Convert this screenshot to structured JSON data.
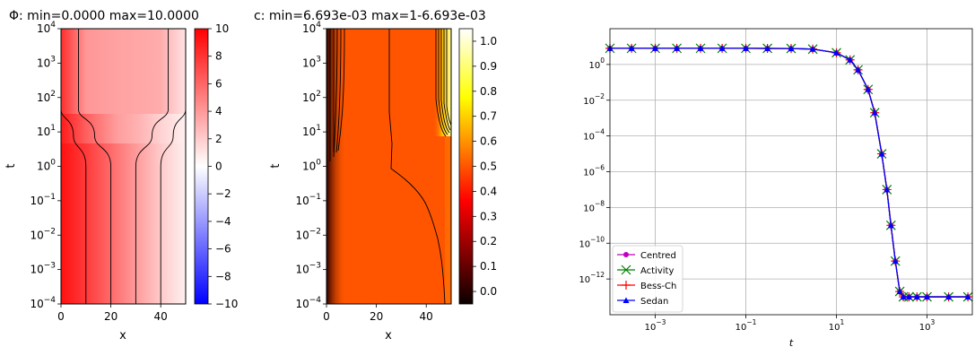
{
  "chart_data": [
    {
      "type": "heatmap",
      "title": "Φ: min=0.0000 max=10.0000",
      "xlabel": "x",
      "ylabel": "t",
      "xlim": [
        0,
        50
      ],
      "ylim": [
        0.0001,
        10000
      ],
      "yscale": "log",
      "x_ticks": [
        "0",
        "20",
        "40"
      ],
      "x_tick_values": [
        0,
        20,
        40
      ],
      "y_tick_exponents": [
        "−4",
        "−3",
        "−2",
        "−1",
        "0",
        "1",
        "2",
        "3",
        "4"
      ],
      "colormap": "bwr",
      "colorbar_range": [
        -10,
        10
      ],
      "colorbar_ticks": [
        "10",
        "8",
        "6",
        "4",
        "2",
        "0",
        "−2",
        "−4",
        "−6",
        "−8",
        "−10"
      ],
      "colorbar_tick_values": [
        10,
        8,
        6,
        4,
        2,
        0,
        -2,
        -4,
        -6,
        -8,
        -10
      ],
      "contours": [
        {
          "x_early": 10,
          "x_late": 0,
          "t_transition": 20
        },
        {
          "x_early": 20,
          "x_late": 7,
          "t_transition": 20
        },
        {
          "x_early": 30,
          "x_late": 43,
          "t_transition": 20
        },
        {
          "x_early": 40,
          "x_late": 50,
          "t_transition": 20
        }
      ]
    },
    {
      "type": "heatmap",
      "title": "c: min=6.693e-03 max=1-6.693e-03",
      "xlabel": "x",
      "ylabel": "t",
      "xlim": [
        0,
        50
      ],
      "ylim": [
        0.0001,
        10000
      ],
      "yscale": "log",
      "x_ticks": [
        "0",
        "20",
        "40"
      ],
      "x_tick_values": [
        0,
        20,
        40
      ],
      "y_tick_exponents": [
        "−4",
        "−3",
        "−2",
        "−1",
        "0",
        "1",
        "2",
        "3",
        "4"
      ],
      "colormap": "hot",
      "colorbar_range": [
        -0.05,
        1.05
      ],
      "colorbar_ticks": [
        "1.0",
        "0.9",
        "0.8",
        "0.7",
        "0.6",
        "0.5",
        "0.4",
        "0.3",
        "0.2",
        "0.1",
        "0.0"
      ],
      "colorbar_tick_values": [
        1.0,
        0.9,
        0.8,
        0.7,
        0.6,
        0.5,
        0.4,
        0.3,
        0.2,
        0.1,
        0.0
      ]
    },
    {
      "type": "line",
      "xlabel": "t",
      "ylabel": "",
      "xscale": "log",
      "yscale": "log",
      "xlim": [
        0.0001,
        10000
      ],
      "ylim": [
        1e-14,
        100
      ],
      "grid": true,
      "legend_position": "lower-left",
      "x_tick_exponents": [
        "−3",
        "−1",
        "1",
        "3"
      ],
      "x_tick_values": [
        0.001,
        0.1,
        10,
        1000
      ],
      "y_tick_exponents": [
        "0",
        "−2",
        "−4",
        "−6",
        "−8",
        "−10",
        "−12"
      ],
      "y_tick_values": [
        1,
        0.01,
        0.0001,
        1e-06,
        1e-08,
        1e-10,
        1e-12
      ],
      "x": [
        0.0001,
        0.0003,
        0.001,
        0.003,
        0.01,
        0.03,
        0.1,
        0.3,
        1,
        3,
        10,
        20,
        30,
        50,
        70,
        100,
        130,
        160,
        200,
        250,
        300,
        400,
        600,
        1000,
        3000,
        8000
      ],
      "series": [
        {
          "name": "Centred",
          "color": "#bf00bf",
          "marker": "circle",
          "values": [
            8,
            8,
            8,
            8,
            8,
            8,
            8,
            7.9,
            7.8,
            7.2,
            4.5,
            1.8,
            0.5,
            0.04,
            0.002,
            1e-05,
            1e-07,
            1e-09,
            1e-11,
            2e-13,
            1e-13,
            1e-13,
            1e-13,
            1e-13,
            1e-13,
            1e-13
          ]
        },
        {
          "name": "Activity",
          "color": "#008000",
          "marker": "x",
          "values": [
            8,
            8,
            8,
            8,
            8,
            8,
            8,
            7.9,
            7.8,
            7.2,
            4.5,
            1.8,
            0.5,
            0.04,
            0.002,
            1e-05,
            1e-07,
            1e-09,
            1e-11,
            2e-13,
            1e-13,
            1e-13,
            1e-13,
            1e-13,
            1e-13,
            1e-13
          ]
        },
        {
          "name": "Bess-Ch",
          "color": "#ff0000",
          "marker": "plus",
          "values": [
            8,
            8,
            8,
            8,
            8,
            8,
            8,
            7.9,
            7.8,
            7.2,
            4.5,
            1.8,
            0.5,
            0.04,
            0.002,
            1e-05,
            1e-07,
            1e-09,
            1e-11,
            2e-13,
            1e-13,
            1e-13,
            1e-13,
            1e-13,
            1e-13,
            1e-13
          ]
        },
        {
          "name": "Sedan",
          "color": "#0000ff",
          "marker": "triangle",
          "values": [
            8,
            8,
            8,
            8,
            8,
            8,
            8,
            7.9,
            7.8,
            7.2,
            4.5,
            1.8,
            0.5,
            0.04,
            0.002,
            1e-05,
            1e-07,
            1e-09,
            1e-11,
            2e-13,
            1e-13,
            1e-13,
            1e-13,
            1e-13,
            1e-13,
            1e-13
          ]
        }
      ]
    }
  ]
}
